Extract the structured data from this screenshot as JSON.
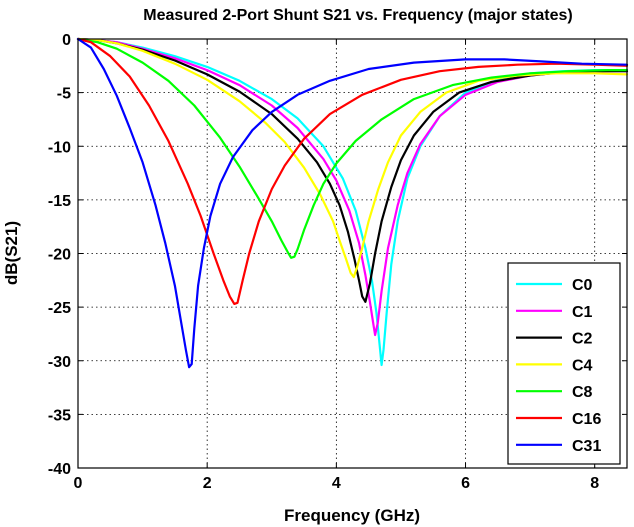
{
  "chart_data": {
    "type": "line",
    "title": "Measured 2-Port Shunt S21 vs. Frequency (major states)",
    "xlabel": "Frequency (GHz)",
    "ylabel": "dB(S21)",
    "xlim": [
      0,
      8.5
    ],
    "ylim": [
      -40,
      0
    ],
    "xticks": [
      0,
      2,
      4,
      6,
      8
    ],
    "xtick_labels": [
      "0",
      "2",
      "4",
      "6",
      "8"
    ],
    "yticks": [
      0,
      -5,
      -10,
      -15,
      -20,
      -25,
      -30,
      -35,
      -40
    ],
    "ytick_labels": [
      "0",
      "-5",
      "-10",
      "-15",
      "-20",
      "-25",
      "-30",
      "-35",
      "-40"
    ],
    "grid": true,
    "legend_position": "bottom-right",
    "series": [
      {
        "name": "C0",
        "color": "#00ffff",
        "x": [
          0,
          0.3,
          0.6,
          1.0,
          1.5,
          2.0,
          2.5,
          3.0,
          3.4,
          3.8,
          4.1,
          4.3,
          4.45,
          4.55,
          4.62,
          4.67,
          4.7,
          4.73,
          4.78,
          4.85,
          4.95,
          5.1,
          5.3,
          5.6,
          6.0,
          6.5,
          7.0,
          7.5,
          8.0,
          8.5
        ],
        "y": [
          0,
          -0.1,
          -0.3,
          -0.8,
          -1.6,
          -2.6,
          -3.9,
          -5.6,
          -7.4,
          -10.0,
          -13.0,
          -16.0,
          -19.5,
          -22.5,
          -25.5,
          -28.5,
          -30.4,
          -29.0,
          -25.5,
          -21.0,
          -17.0,
          -13.0,
          -10.0,
          -7.2,
          -5.0,
          -3.8,
          -3.2,
          -3.0,
          -2.9,
          -2.9
        ]
      },
      {
        "name": "C1",
        "color": "#ff00ff",
        "x": [
          0,
          0.3,
          0.6,
          1.0,
          1.5,
          2.0,
          2.5,
          3.0,
          3.4,
          3.8,
          4.0,
          4.2,
          4.35,
          4.45,
          4.52,
          4.57,
          4.6,
          4.64,
          4.7,
          4.8,
          4.95,
          5.1,
          5.3,
          5.6,
          6.0,
          6.5,
          7.0,
          7.5,
          8.0,
          8.5
        ],
        "y": [
          0,
          -0.1,
          -0.3,
          -0.9,
          -1.8,
          -2.9,
          -4.3,
          -6.2,
          -8.3,
          -11.2,
          -13.2,
          -16.0,
          -19.0,
          -22.0,
          -24.5,
          -26.5,
          -27.6,
          -26.5,
          -23.5,
          -19.5,
          -15.5,
          -12.5,
          -9.8,
          -7.2,
          -5.2,
          -4.0,
          -3.4,
          -3.1,
          -3.0,
          -3.0
        ]
      },
      {
        "name": "C2",
        "color": "#000000",
        "x": [
          0,
          0.3,
          0.6,
          1.0,
          1.5,
          2.0,
          2.5,
          3.0,
          3.4,
          3.7,
          3.9,
          4.05,
          4.18,
          4.28,
          4.35,
          4.4,
          4.45,
          4.52,
          4.6,
          4.7,
          4.85,
          5.0,
          5.2,
          5.5,
          5.9,
          6.4,
          7.0,
          7.5,
          8.0,
          8.5
        ],
        "y": [
          0,
          -0.1,
          -0.4,
          -1.0,
          -2.0,
          -3.3,
          -4.9,
          -7.0,
          -9.3,
          -11.5,
          -13.5,
          -15.5,
          -18.0,
          -20.5,
          -22.5,
          -24.0,
          -24.5,
          -22.8,
          -20.0,
          -17.0,
          -13.8,
          -11.3,
          -9.0,
          -6.8,
          -5.0,
          -4.0,
          -3.4,
          -3.1,
          -3.0,
          -3.0
        ]
      },
      {
        "name": "C4",
        "color": "#ffff00",
        "x": [
          0,
          0.3,
          0.6,
          1.0,
          1.5,
          2.0,
          2.5,
          2.9,
          3.2,
          3.5,
          3.75,
          3.95,
          4.05,
          4.15,
          4.22,
          4.27,
          4.32,
          4.4,
          4.5,
          4.65,
          4.8,
          5.0,
          5.3,
          5.7,
          6.2,
          6.8,
          7.4,
          8.0,
          8.5
        ],
        "y": [
          0,
          -0.1,
          -0.4,
          -1.1,
          -2.3,
          -3.8,
          -5.8,
          -7.8,
          -9.6,
          -12.0,
          -14.5,
          -17.0,
          -18.8,
          -20.5,
          -21.8,
          -22.2,
          -21.3,
          -19.5,
          -17.0,
          -14.0,
          -11.5,
          -9.0,
          -6.8,
          -5.0,
          -3.9,
          -3.4,
          -3.2,
          -3.2,
          -3.3
        ]
      },
      {
        "name": "C8",
        "color": "#00ff00",
        "x": [
          0,
          0.3,
          0.6,
          1.0,
          1.4,
          1.8,
          2.2,
          2.5,
          2.8,
          3.0,
          3.15,
          3.25,
          3.3,
          3.35,
          3.4,
          3.5,
          3.65,
          3.8,
          4.0,
          4.3,
          4.7,
          5.2,
          5.8,
          6.4,
          7.0,
          7.6,
          8.2,
          8.5
        ],
        "y": [
          0,
          -0.3,
          -0.9,
          -2.2,
          -3.9,
          -6.2,
          -9.2,
          -11.9,
          -14.9,
          -17.0,
          -18.8,
          -19.9,
          -20.4,
          -20.3,
          -19.6,
          -17.8,
          -15.5,
          -13.5,
          -11.6,
          -9.5,
          -7.5,
          -5.6,
          -4.3,
          -3.6,
          -3.2,
          -3.0,
          -2.9,
          -2.9
        ]
      },
      {
        "name": "C16",
        "color": "#ff0000",
        "x": [
          0,
          0.2,
          0.5,
          0.8,
          1.1,
          1.4,
          1.7,
          1.9,
          2.1,
          2.25,
          2.35,
          2.42,
          2.47,
          2.55,
          2.65,
          2.8,
          3.0,
          3.2,
          3.5,
          3.9,
          4.4,
          5.0,
          5.6,
          6.2,
          6.8,
          7.4,
          8.0,
          8.5
        ],
        "y": [
          0,
          -0.3,
          -1.6,
          -3.5,
          -6.2,
          -9.5,
          -13.5,
          -16.5,
          -20.0,
          -22.5,
          -24.0,
          -24.7,
          -24.6,
          -22.5,
          -20.0,
          -17.0,
          -14.0,
          -11.8,
          -9.3,
          -7.0,
          -5.2,
          -3.8,
          -3.0,
          -2.6,
          -2.4,
          -2.3,
          -2.4,
          -2.5
        ]
      },
      {
        "name": "C31",
        "color": "#0000ff",
        "x": [
          0,
          0.2,
          0.4,
          0.6,
          0.8,
          1.0,
          1.2,
          1.35,
          1.5,
          1.6,
          1.67,
          1.72,
          1.76,
          1.8,
          1.86,
          1.95,
          2.05,
          2.2,
          2.4,
          2.7,
          3.0,
          3.4,
          3.9,
          4.5,
          5.2,
          6.0,
          6.6,
          7.2,
          7.8,
          8.5
        ],
        "y": [
          0,
          -0.8,
          -2.8,
          -5.3,
          -8.3,
          -11.5,
          -15.5,
          -19.0,
          -23.0,
          -26.5,
          -29.0,
          -30.6,
          -30.3,
          -27.0,
          -23.0,
          -19.5,
          -16.5,
          -13.5,
          -11.0,
          -8.5,
          -6.8,
          -5.2,
          -3.9,
          -2.8,
          -2.2,
          -1.9,
          -1.9,
          -2.1,
          -2.3,
          -2.4
        ]
      }
    ]
  }
}
